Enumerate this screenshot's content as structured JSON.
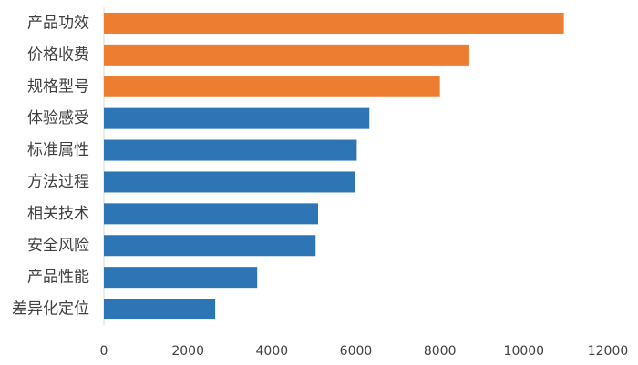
{
  "chart_data": {
    "type": "bar",
    "orientation": "horizontal",
    "title": "",
    "xlabel": "",
    "ylabel": "",
    "categories": [
      "产品功效",
      "价格收费",
      "规格型号",
      "体验感受",
      "标准属性",
      "方法过程",
      "相关技术",
      "安全风险",
      "产品性能",
      "差异化定位"
    ],
    "values": [
      10950,
      8700,
      8000,
      6320,
      6020,
      5980,
      5100,
      5040,
      3650,
      2650
    ],
    "bar_colors": [
      "#ed7d31",
      "#ed7d31",
      "#ed7d31",
      "#2e75b6",
      "#2e75b6",
      "#2e75b6",
      "#2e75b6",
      "#2e75b6",
      "#2e75b6",
      "#2e75b6"
    ],
    "xlim": [
      0,
      12000
    ],
    "x_ticks": [
      "0",
      "2000",
      "4000",
      "6000",
      "8000",
      "10000",
      "12000"
    ],
    "grid": false,
    "legend": "none"
  },
  "colors": {
    "highlight": "#ed7d31",
    "primary": "#2e75b6",
    "axis": "#d9d9d9",
    "text": "#404040"
  }
}
